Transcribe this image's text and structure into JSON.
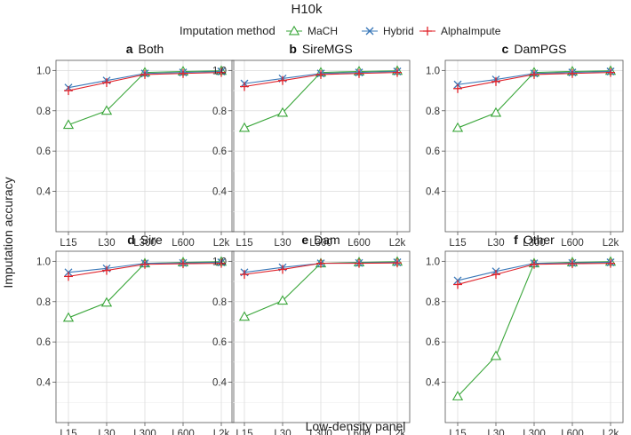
{
  "chart_data": {
    "type": "line",
    "title": "H10k",
    "xlabel": "Low-density panel",
    "ylabel": "Imputation accuracy",
    "categories": [
      "L15",
      "L30",
      "L300",
      "L600",
      "L2k"
    ],
    "ylim": [
      0.2,
      1.05
    ],
    "yticks": [
      0.4,
      0.6,
      0.8,
      1.0
    ],
    "ytick_labels": [
      "0.4",
      "0.6",
      "0.8",
      "1.0"
    ],
    "grid": true,
    "legend": {
      "title": "Imputation method",
      "position": "top",
      "entries": [
        {
          "name": "MaCH",
          "color": "#3aa63a",
          "marker": "triangle"
        },
        {
          "name": "Hybrid",
          "color": "#3a78b8",
          "marker": "x"
        },
        {
          "name": "AlphaImpute",
          "color": "#e0222a",
          "marker": "plus"
        }
      ]
    },
    "panels": [
      {
        "letter": "a",
        "name": "Both",
        "series": [
          {
            "name": "MaCH",
            "values": [
              0.73,
              0.8,
              0.99,
              0.995,
              0.998
            ]
          },
          {
            "name": "Hybrid",
            "values": [
              0.915,
              0.95,
              0.985,
              0.99,
              0.995
            ]
          },
          {
            "name": "AlphaImpute",
            "values": [
              0.9,
              0.94,
              0.98,
              0.985,
              0.99
            ]
          }
        ]
      },
      {
        "letter": "b",
        "name": "SireMGS",
        "series": [
          {
            "name": "MaCH",
            "values": [
              0.715,
              0.79,
              0.99,
              0.995,
              0.998
            ]
          },
          {
            "name": "Hybrid",
            "values": [
              0.935,
              0.96,
              0.985,
              0.99,
              0.995
            ]
          },
          {
            "name": "AlphaImpute",
            "values": [
              0.92,
              0.95,
              0.98,
              0.985,
              0.99
            ]
          }
        ]
      },
      {
        "letter": "c",
        "name": "DamPGS",
        "series": [
          {
            "name": "MaCH",
            "values": [
              0.715,
              0.79,
              0.99,
              0.995,
              0.998
            ]
          },
          {
            "name": "Hybrid",
            "values": [
              0.93,
              0.955,
              0.985,
              0.99,
              0.995
            ]
          },
          {
            "name": "AlphaImpute",
            "values": [
              0.91,
              0.945,
              0.98,
              0.985,
              0.99
            ]
          }
        ]
      },
      {
        "letter": "d",
        "name": "Sire",
        "series": [
          {
            "name": "MaCH",
            "values": [
              0.72,
              0.795,
              0.99,
              0.995,
              0.998
            ]
          },
          {
            "name": "Hybrid",
            "values": [
              0.945,
              0.965,
              0.99,
              0.992,
              0.995
            ]
          },
          {
            "name": "AlphaImpute",
            "values": [
              0.925,
              0.955,
              0.985,
              0.988,
              0.99
            ]
          }
        ]
      },
      {
        "letter": "e",
        "name": "Dam",
        "series": [
          {
            "name": "MaCH",
            "values": [
              0.725,
              0.805,
              0.99,
              0.995,
              0.998
            ]
          },
          {
            "name": "Hybrid",
            "values": [
              0.945,
              0.97,
              0.99,
              0.992,
              0.995
            ]
          },
          {
            "name": "AlphaImpute",
            "values": [
              0.935,
              0.96,
              0.99,
              0.99,
              0.992
            ]
          }
        ]
      },
      {
        "letter": "f",
        "name": "Other",
        "series": [
          {
            "name": "MaCH",
            "values": [
              0.33,
              0.53,
              0.99,
              0.995,
              0.998
            ]
          },
          {
            "name": "Hybrid",
            "values": [
              0.905,
              0.95,
              0.99,
              0.992,
              0.995
            ]
          },
          {
            "name": "AlphaImpute",
            "values": [
              0.885,
              0.935,
              0.985,
              0.988,
              0.99
            ]
          }
        ]
      }
    ]
  }
}
